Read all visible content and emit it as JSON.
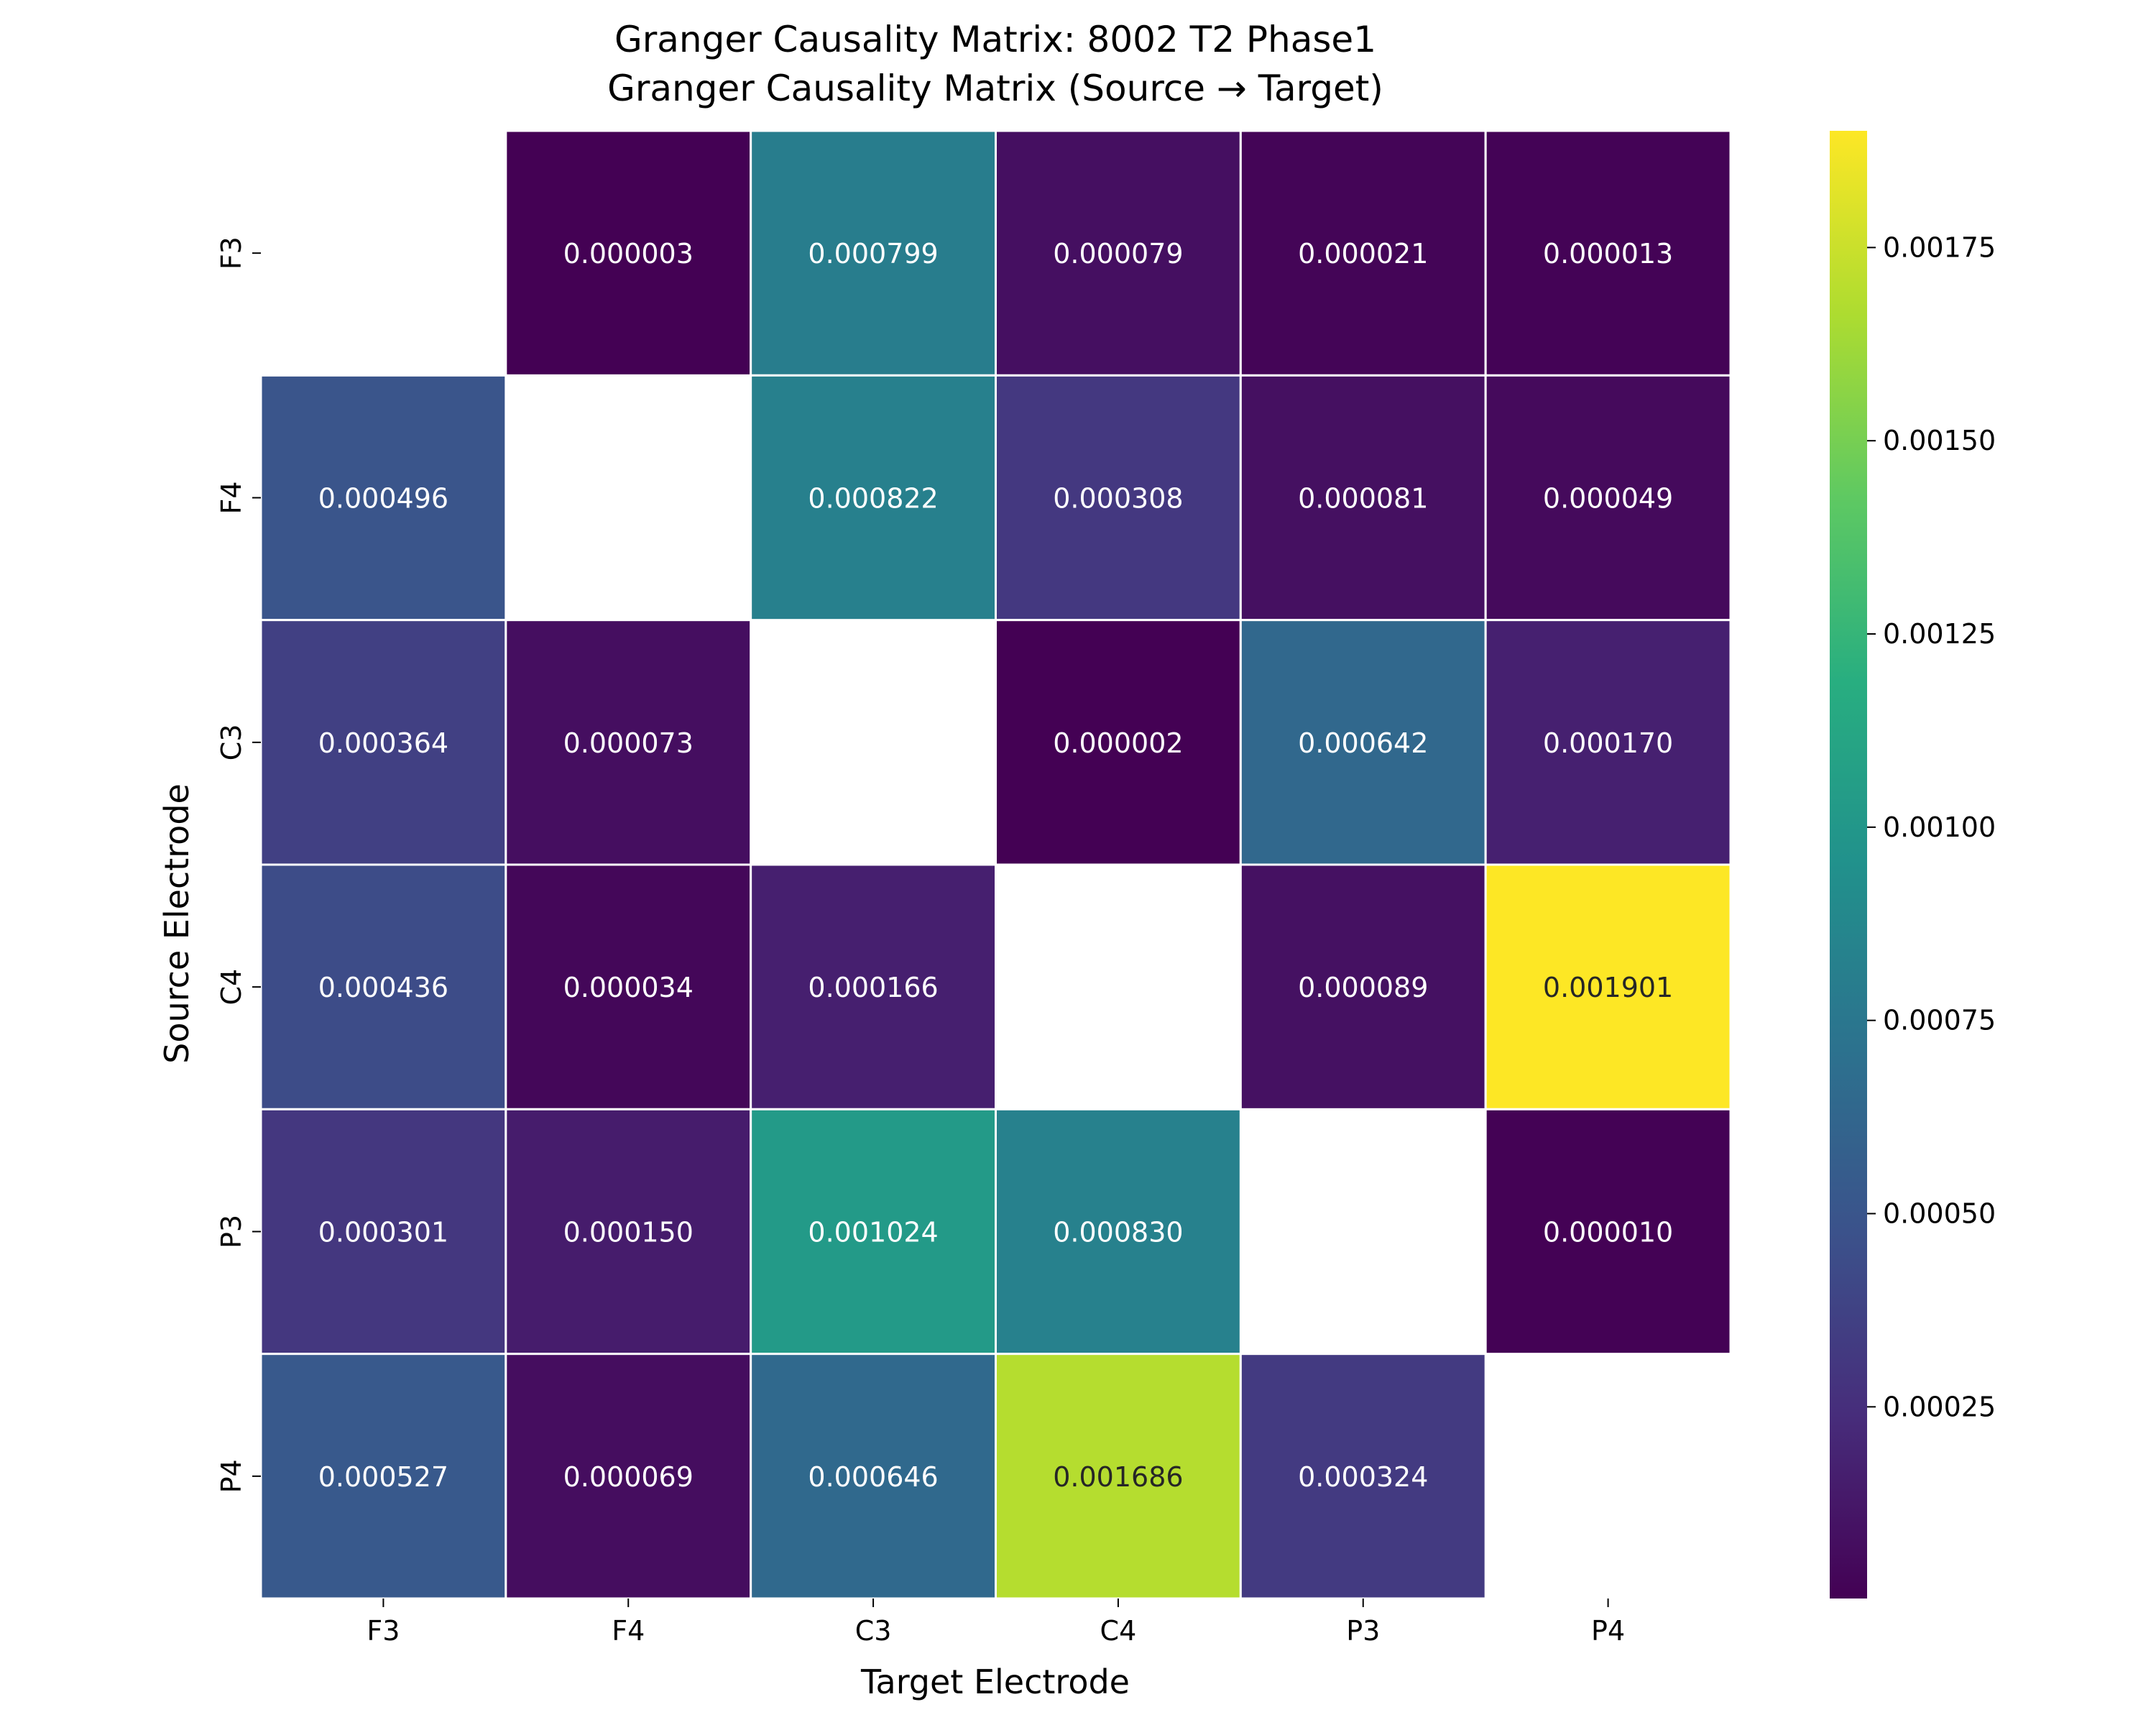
{
  "chart_data": {
    "type": "heatmap",
    "title_line1": "Granger Causality Matrix: 8002 T2 Phase1",
    "title_line2": "Granger Causality Matrix (Source → Target)",
    "xlabel": "Target Electrode",
    "ylabel": "Source Electrode",
    "x_categories": [
      "F3",
      "F4",
      "C3",
      "C4",
      "P3",
      "P4"
    ],
    "y_categories": [
      "F3",
      "F4",
      "C3",
      "C4",
      "P3",
      "P4"
    ],
    "values": [
      [
        null,
        3e-06,
        0.000799,
        7.9e-05,
        2.1e-05,
        1.3e-05
      ],
      [
        0.000496,
        null,
        0.000822,
        0.000308,
        8.1e-05,
        4.9e-05
      ],
      [
        0.000364,
        7.3e-05,
        null,
        2e-06,
        0.000642,
        0.00017
      ],
      [
        0.000436,
        3.4e-05,
        0.000166,
        null,
        8.9e-05,
        0.001901
      ],
      [
        0.000301,
        0.00015,
        0.001024,
        0.00083,
        null,
        1e-05
      ],
      [
        0.000527,
        6.9e-05,
        0.000646,
        0.001686,
        0.000324,
        null
      ]
    ],
    "labels": [
      [
        "",
        "0.000003",
        "0.000799",
        "0.000079",
        "0.000021",
        "0.000013"
      ],
      [
        "0.000496",
        "",
        "0.000822",
        "0.000308",
        "0.000081",
        "0.000049"
      ],
      [
        "0.000364",
        "0.000073",
        "",
        "0.000002",
        "0.000642",
        "0.000170"
      ],
      [
        "0.000436",
        "0.000034",
        "0.000166",
        "",
        "0.000089",
        "0.001901"
      ],
      [
        "0.000301",
        "0.000150",
        "0.001024",
        "0.000830",
        "",
        "0.000010"
      ],
      [
        "0.000527",
        "0.000069",
        "0.000646",
        "0.001686",
        "0.000324",
        ""
      ]
    ],
    "colorscale": "viridis",
    "vmin": 2e-06,
    "vmax": 0.001901,
    "colorbar_ticks": [
      0.00025,
      0.0005,
      0.00075,
      0.001,
      0.00125,
      0.0015,
      0.00175
    ],
    "colorbar_tick_labels": [
      "0.00025",
      "0.00050",
      "0.00075",
      "0.00100",
      "0.00125",
      "0.00150",
      "0.00175"
    ],
    "diagonal_masked": true
  }
}
